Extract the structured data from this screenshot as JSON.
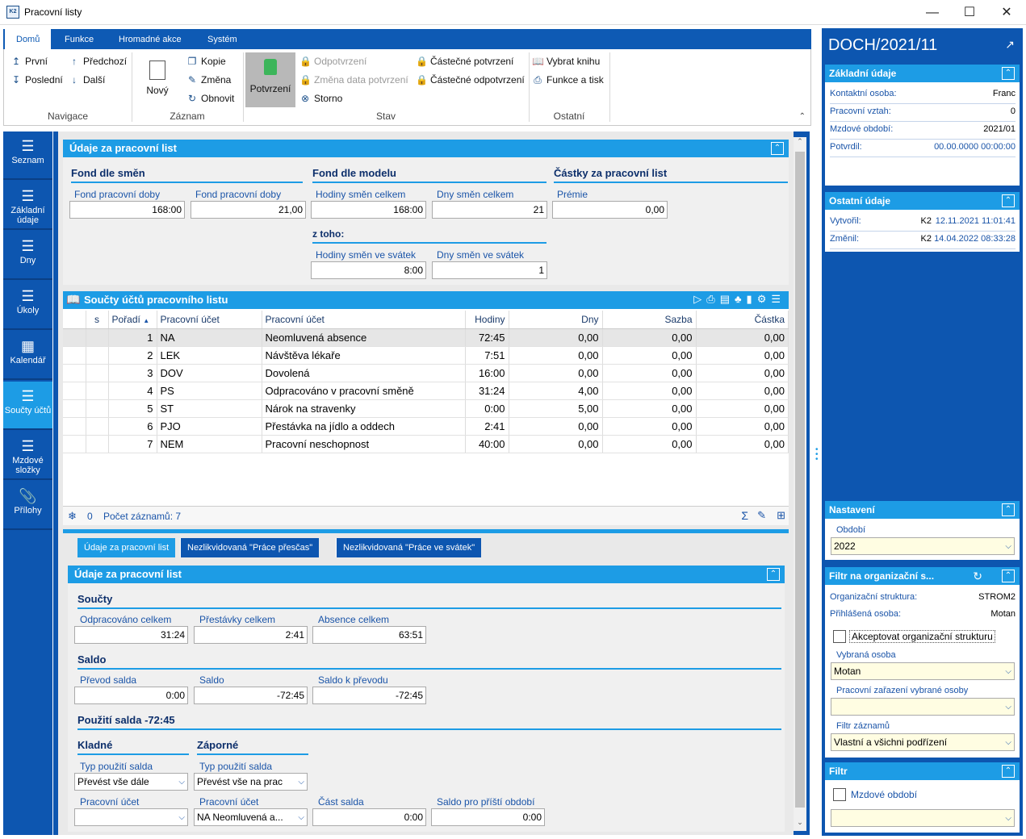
{
  "window": {
    "title": "Pracovní listy",
    "logo": "K2"
  },
  "ribbon": {
    "tabs": [
      "Domů",
      "Funkce",
      "Hromadné akce",
      "Systém"
    ],
    "nav": {
      "first": "První",
      "last": "Poslední",
      "prev": "Předchozí",
      "next": "Další",
      "group": "Navigace"
    },
    "record": {
      "new": "Nový",
      "copy": "Kopie",
      "change": "Změna",
      "refresh": "Obnovit",
      "group": "Záznam"
    },
    "state": {
      "confirm": "Potvrzení",
      "unconfirm": "Odpotvrzení",
      "change_date": "Změna data potvrzení",
      "cancel": "Storno",
      "partial_confirm": "Částečné potvrzení",
      "partial_unconfirm": "Částečné odpotvrzení",
      "group": "Stav"
    },
    "other": {
      "select_book": "Vybrat knihu",
      "func_print": "Funkce a tisk",
      "group": "Ostatní"
    }
  },
  "leftnav": [
    {
      "label": "Seznam",
      "icon": "list-icon"
    },
    {
      "label": "Základní údaje",
      "icon": "list-icon"
    },
    {
      "label": "Dny",
      "icon": "list-icon"
    },
    {
      "label": "Úkoly",
      "icon": "list-icon"
    },
    {
      "label": "Kalendář",
      "icon": "calendar-icon"
    },
    {
      "label": "Součty účtů",
      "icon": "list-icon"
    },
    {
      "label": "Mzdové složky",
      "icon": "list-icon"
    },
    {
      "label": "Přílohy",
      "icon": "paperclip-icon"
    }
  ],
  "top_panel": {
    "title": "Údaje za pracovní list",
    "fond_smen": {
      "head": "Fond dle směn",
      "f1_label": "Fond pracovní doby",
      "f1": "168:00",
      "f2_label": "Fond pracovní doby",
      "f2": "21,00"
    },
    "fond_model": {
      "head": "Fond dle modelu",
      "f1_label": "Hodiny směn celkem",
      "f1": "168:00",
      "f2_label": "Dny směn celkem",
      "f2": "21",
      "sub": "z toho:",
      "f3_label": "Hodiny směn ve svátek",
      "f3": "8:00",
      "f4_label": "Dny směn ve svátek",
      "f4": "1"
    },
    "castky": {
      "head": "Částky za pracovní list",
      "f1_label": "Prémie",
      "f1": "0,00"
    }
  },
  "grid": {
    "title": "Součty účtů pracovního listu",
    "headers": [
      "s",
      "Pořadí",
      "Pracovní účet",
      "Pracovní účet",
      "Hodiny",
      "Dny",
      "Sazba",
      "Částka"
    ],
    "rows": [
      [
        "1",
        "NA",
        "Neomluvená absence",
        "72:45",
        "0,00",
        "0,00",
        "0,00"
      ],
      [
        "2",
        "LEK",
        "Návštěva lékaře",
        "7:51",
        "0,00",
        "0,00",
        "0,00"
      ],
      [
        "3",
        "DOV",
        "Dovolená",
        "16:00",
        "0,00",
        "0,00",
        "0,00"
      ],
      [
        "4",
        "PS",
        "Odpracováno v pracovní směně",
        "31:24",
        "4,00",
        "0,00",
        "0,00"
      ],
      [
        "5",
        "ST",
        "Nárok na stravenky",
        "0:00",
        "5,00",
        "0,00",
        "0,00"
      ],
      [
        "6",
        "PJO",
        "Přestávka na jídlo a oddech",
        "2:41",
        "0,00",
        "0,00",
        "0,00"
      ],
      [
        "7",
        "NEM",
        "Pracovní neschopnost",
        "40:00",
        "0,00",
        "0,00",
        "0,00"
      ]
    ],
    "footer_count": "0",
    "footer_records": "Počet záznamů: 7"
  },
  "bottom_tabs": [
    "Údaje za pracovní list",
    "Nezlikvidovaná \"Práce přesčas\"",
    "Nezlikvidovaná \"Práce ve svátek\""
  ],
  "bottom_panel": {
    "title": "Údaje za pracovní list",
    "soucty": {
      "head": "Součty",
      "l1": "Odpracováno celkem",
      "v1": "31:24",
      "l2": "Přestávky celkem",
      "v2": "2:41",
      "l3": "Absence celkem",
      "v3": "63:51"
    },
    "saldo": {
      "head": "Saldo",
      "l1": "Převod salda",
      "v1": "0:00",
      "l2": "Saldo",
      "v2": "-72:45",
      "l3": "Saldo k převodu",
      "v3": "-72:45"
    },
    "pouziti": {
      "head": "Použití salda -72:45",
      "kladne": "Kladné",
      "zaporne": "Záporné",
      "typ_label": "Typ použití salda",
      "typ_k": "Převést vše dále",
      "typ_z": "Převést vše na prac",
      "ucet_label": "Pracovní účet",
      "ucet_k": "",
      "ucet_z": "NA Neomluvená a...",
      "cast_label": "Část salda",
      "cast": "0:00",
      "pristi_label": "Saldo pro příští období",
      "pristi": "0:00"
    }
  },
  "right": {
    "doc_title": "DOCH/2021/11",
    "zakladni": {
      "title": "Základní údaje",
      "rows": [
        [
          "Kontaktní osoba:",
          "Franc"
        ],
        [
          "Pracovní vztah:",
          "0"
        ],
        [
          "Mzdové období:",
          "2021/01"
        ],
        [
          "Potvrdil:",
          "00.00.0000 00:00:00"
        ]
      ]
    },
    "ostatni": {
      "title": "Ostatní údaje",
      "vytvoril_label": "Vytvořil:",
      "vytvoril_user": "K2",
      "vytvoril_date": "12.11.2021 11:01:41",
      "zmenil_label": "Změnil:",
      "zmenil_user": "K2",
      "zmenil_date": "14.04.2022 08:33:28"
    },
    "nastaveni": {
      "title": "Nastavení",
      "obdobi_label": "Období",
      "obdobi": "2022"
    },
    "filtr_org": {
      "title": "Filtr na organizační s...",
      "org_label": "Organizační struktura:",
      "org": "STROM2",
      "prihl_label": "Přihlášená osoba:",
      "prihl": "Motan",
      "akcept": "Akceptovat organizační strukturu",
      "vybrana_label": "Vybraná osoba",
      "vybrana": "Motan",
      "zarazeni_label": "Pracovní zařazení vybrané osoby",
      "zarazeni": "",
      "filtr_label": "Filtr záznamů",
      "filtr": "Vlastní a všichni podřízení"
    },
    "filtr": {
      "title": "Filtr",
      "mzd_label": "Mzdové období",
      "mzd": ""
    }
  }
}
